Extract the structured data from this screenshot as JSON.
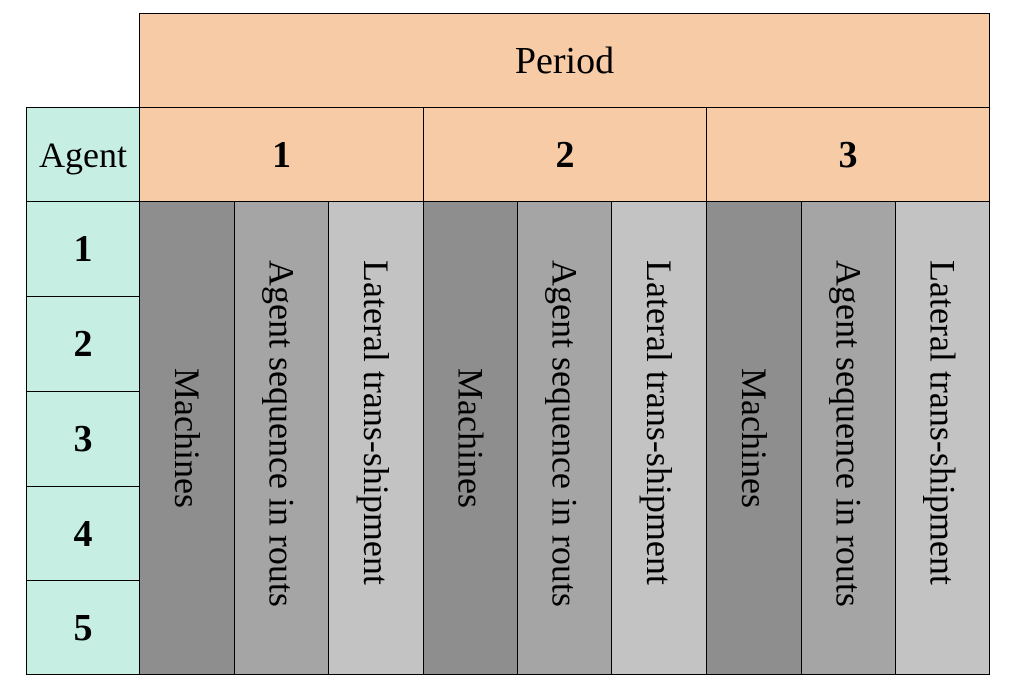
{
  "header": {
    "period_label": "Period",
    "agent_label": "Agent"
  },
  "periods": [
    "1",
    "2",
    "3"
  ],
  "agents": [
    "1",
    "2",
    "3",
    "4",
    "5"
  ],
  "columns": [
    "Machines",
    "Agent sequence in routs",
    "Lateral trans-shipment"
  ],
  "colors": {
    "header": "#F8CBA7",
    "agent": "#C6EEE3",
    "machines": "#8E8E8E",
    "sequence": "#A5A5A5",
    "transshipment": "#C3C3C3"
  }
}
